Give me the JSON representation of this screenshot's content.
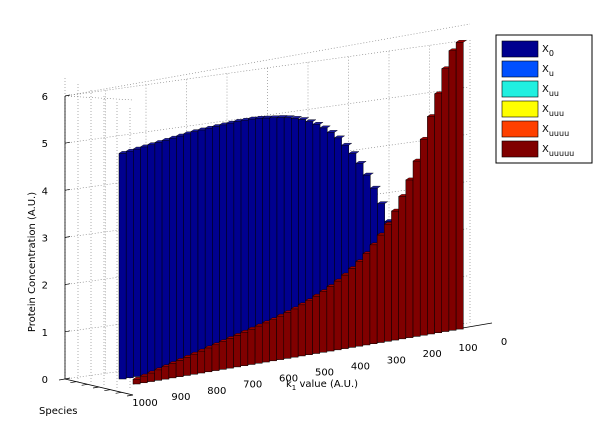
{
  "chart_data": {
    "type": "bar3d",
    "xlabel_main": "k",
    "xlabel_sub": "1",
    "xlabel_rest": " value (A.U.)",
    "ylabel": "Protein Concentration (A.U.)",
    "depth_label": "Species",
    "ylim": [
      0,
      6
    ],
    "y_ticks": [
      "0",
      "1",
      "2",
      "3",
      "4",
      "5",
      "6"
    ],
    "k_ticks": [
      "1000",
      "900",
      "800",
      "700",
      "600",
      "500",
      "400",
      "300",
      "200",
      "100",
      "0"
    ],
    "k_values": [
      1000,
      980,
      960,
      940,
      920,
      900,
      880,
      860,
      840,
      820,
      800,
      780,
      760,
      740,
      720,
      700,
      680,
      660,
      640,
      620,
      600,
      580,
      560,
      540,
      520,
      500,
      480,
      460,
      440,
      420,
      400,
      380,
      360,
      340,
      320,
      300,
      280,
      260,
      240,
      220,
      200,
      180,
      160,
      140,
      120,
      100
    ],
    "legend": [
      {
        "base": "X",
        "sub": "0",
        "color": "#00008f"
      },
      {
        "base": "X",
        "sub": "u",
        "color": "#0050ff"
      },
      {
        "base": "X",
        "sub": "uu",
        "color": "#20f0e0"
      },
      {
        "base": "X",
        "sub": "uuu",
        "color": "#ffff00"
      },
      {
        "base": "X",
        "sub": "uuuu",
        "color": "#ff4000"
      },
      {
        "base": "X",
        "sub": "uuuuu",
        "color": "#800000"
      }
    ],
    "series": [
      {
        "name": "X0",
        "values": [
          4.72,
          4.74,
          4.76,
          4.78,
          4.8,
          4.82,
          4.84,
          4.86,
          4.88,
          4.9,
          4.92,
          4.93,
          4.94,
          4.95,
          4.96,
          4.97,
          4.98,
          4.98,
          4.98,
          4.97,
          4.95,
          4.93,
          4.91,
          4.88,
          4.84,
          4.79,
          4.72,
          4.64,
          4.54,
          4.42,
          4.28,
          4.1,
          3.9,
          3.67,
          3.4,
          3.1,
          2.75,
          2.35,
          1.9,
          1.4,
          0.9,
          0.45,
          0.12,
          0.03,
          0.01,
          0.0
        ]
      },
      {
        "name": "Xu",
        "values": "zero"
      },
      {
        "name": "Xuu",
        "values": "zero"
      },
      {
        "name": "Xuuu",
        "values": "zero"
      },
      {
        "name": "Xuuuu",
        "values": "zero"
      },
      {
        "name": "Xuuuuu",
        "values": [
          0.1,
          0.14,
          0.18,
          0.22,
          0.26,
          0.3,
          0.34,
          0.38,
          0.42,
          0.46,
          0.5,
          0.54,
          0.58,
          0.62,
          0.66,
          0.7,
          0.74,
          0.78,
          0.82,
          0.86,
          0.91,
          0.96,
          1.01,
          1.07,
          1.13,
          1.2,
          1.27,
          1.35,
          1.44,
          1.54,
          1.65,
          1.77,
          1.91,
          2.07,
          2.25,
          2.45,
          2.7,
          2.98,
          3.3,
          3.67,
          4.1,
          4.55,
          5.0,
          5.5,
          5.85,
          6.0
        ]
      }
    ]
  }
}
